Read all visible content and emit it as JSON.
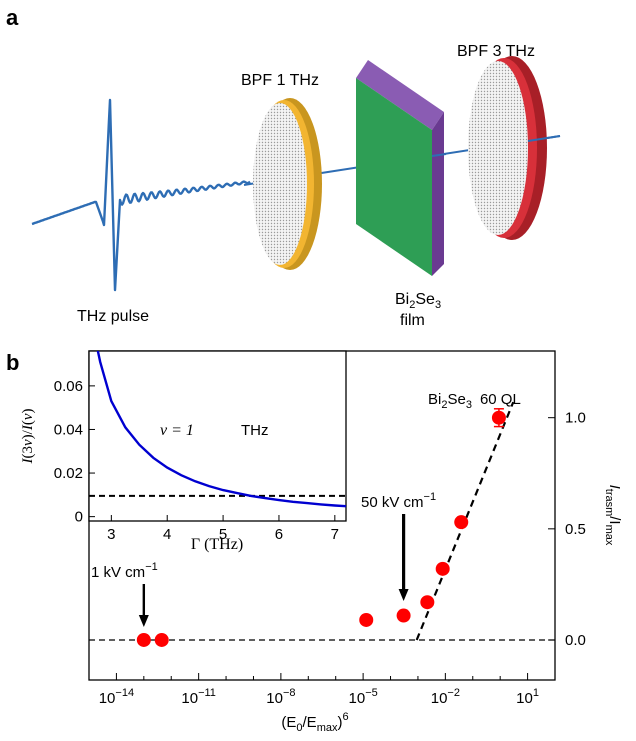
{
  "figure": {
    "panel_a": {
      "label": "a",
      "pulse_label": "THz pulse",
      "filter1_label": "BPF 1 THz",
      "filter2_label": "BPF 3 THz",
      "film_label_line1_parts": [
        "Bi",
        "2",
        "Se",
        "3"
      ],
      "film_label_line2": "film",
      "colors": {
        "pulse": "#2e6db4",
        "filter1_rim": "#f2b531",
        "filter2_rim": "#d8303a",
        "film_face": "#2e9e55",
        "film_edge": "#6a3a91",
        "mesh": "#d9d9d9"
      }
    },
    "panel_b": {
      "label": "b",
      "sample_label_parts": [
        "Bi",
        "2",
        "Se",
        "3",
        "60 QL"
      ],
      "annotation_1kV": "1 kV cm",
      "annotation_50kV": "50 kV cm",
      "annotation_exp": "−1",
      "inset_formula": "v = 1",
      "inset_unit": "THz",
      "colors": {
        "points": "#ff0000",
        "inset_curve": "#0000d0"
      }
    }
  },
  "chart_data": [
    {
      "type": "scatter",
      "title": "",
      "xlabel": "(E0/Emax)^6",
      "xlabel_parts": [
        "(E",
        "0",
        "/E",
        "max",
        ")",
        "6"
      ],
      "ylabel": "Itrasm/Imax",
      "ylabel_parts": [
        "I",
        "trasm",
        "/I",
        "max"
      ],
      "x_scale": "log",
      "xlim": [
        1e-15,
        100.0
      ],
      "ylim": [
        -0.18,
        1.3
      ],
      "x_ticks": [
        {
          "value": 1e-14,
          "base": "10",
          "exp": "−14"
        },
        {
          "value": 1e-11,
          "base": "10",
          "exp": "−11"
        },
        {
          "value": 1e-08,
          "base": "10",
          "exp": "−8"
        },
        {
          "value": 1e-05,
          "base": "10",
          "exp": "−5"
        },
        {
          "value": 0.01,
          "base": "10",
          "exp": "−2"
        },
        {
          "value": 10.0,
          "base": "10",
          "exp": "1"
        }
      ],
      "y_ticks": [
        {
          "value": 0.0,
          "label": "0.0"
        },
        {
          "value": 0.5,
          "label": "0.5"
        },
        {
          "value": 1.0,
          "label": "1.0"
        }
      ],
      "y_axis_side": "right",
      "series": [
        {
          "points": [
            {
              "x": 1e-13,
              "y": 0.0
            },
            {
              "x": 4.5e-13,
              "y": 0.0
            },
            {
              "x": 1.3e-05,
              "y": 0.09
            },
            {
              "x": 0.0003,
              "y": 0.11
            },
            {
              "x": 0.0022,
              "y": 0.17
            },
            {
              "x": 0.008,
              "y": 0.32
            },
            {
              "x": 0.038,
              "y": 0.53
            },
            {
              "x": 0.9,
              "y": 1.0,
              "err": 0.04
            }
          ]
        }
      ],
      "baseline": {
        "y": 0.0,
        "style": "dashed"
      },
      "fit_line": {
        "x": [
          0.0009,
          3.0
        ],
        "y": [
          0.0,
          1.07
        ],
        "style": "dashed"
      },
      "annotations": [
        {
          "text": "1 kV cm−1",
          "x": 1e-13
        },
        {
          "text": "50 kV cm−1",
          "x": 0.0003
        }
      ],
      "grid": false
    },
    {
      "type": "line",
      "title": "",
      "xlabel": "Γ (THz)",
      "ylabel": "I(3v)/I(v)",
      "ylabel_parts": [
        "I",
        "(3",
        "v",
        ")/",
        "I",
        "(",
        "v",
        ")"
      ],
      "xlim": [
        2.6,
        7.2
      ],
      "ylim": [
        -0.002,
        0.076
      ],
      "x_ticks": [
        3,
        4,
        5,
        6,
        7
      ],
      "y_ticks": [
        {
          "value": 0,
          "label": "0"
        },
        {
          "value": 0.02,
          "label": "0.02"
        },
        {
          "value": 0.04,
          "label": "0.04"
        },
        {
          "value": 0.06,
          "label": "0.06"
        }
      ],
      "series": [
        {
          "x": [
            2.6,
            2.8,
            3.0,
            3.25,
            3.5,
            3.75,
            4.0,
            4.25,
            4.5,
            4.75,
            5.0,
            5.25,
            5.5,
            5.75,
            6.0,
            6.25,
            6.5,
            6.75,
            7.0,
            7.2
          ],
          "y": [
            0.095,
            0.071,
            0.053,
            0.041,
            0.033,
            0.027,
            0.0225,
            0.019,
            0.0162,
            0.014,
            0.0122,
            0.0108,
            0.0095,
            0.0085,
            0.0076,
            0.0068,
            0.0062,
            0.0056,
            0.0051,
            0.0048
          ]
        }
      ],
      "threshold": {
        "y": 0.0095,
        "style": "dashed"
      },
      "grid": false
    }
  ]
}
